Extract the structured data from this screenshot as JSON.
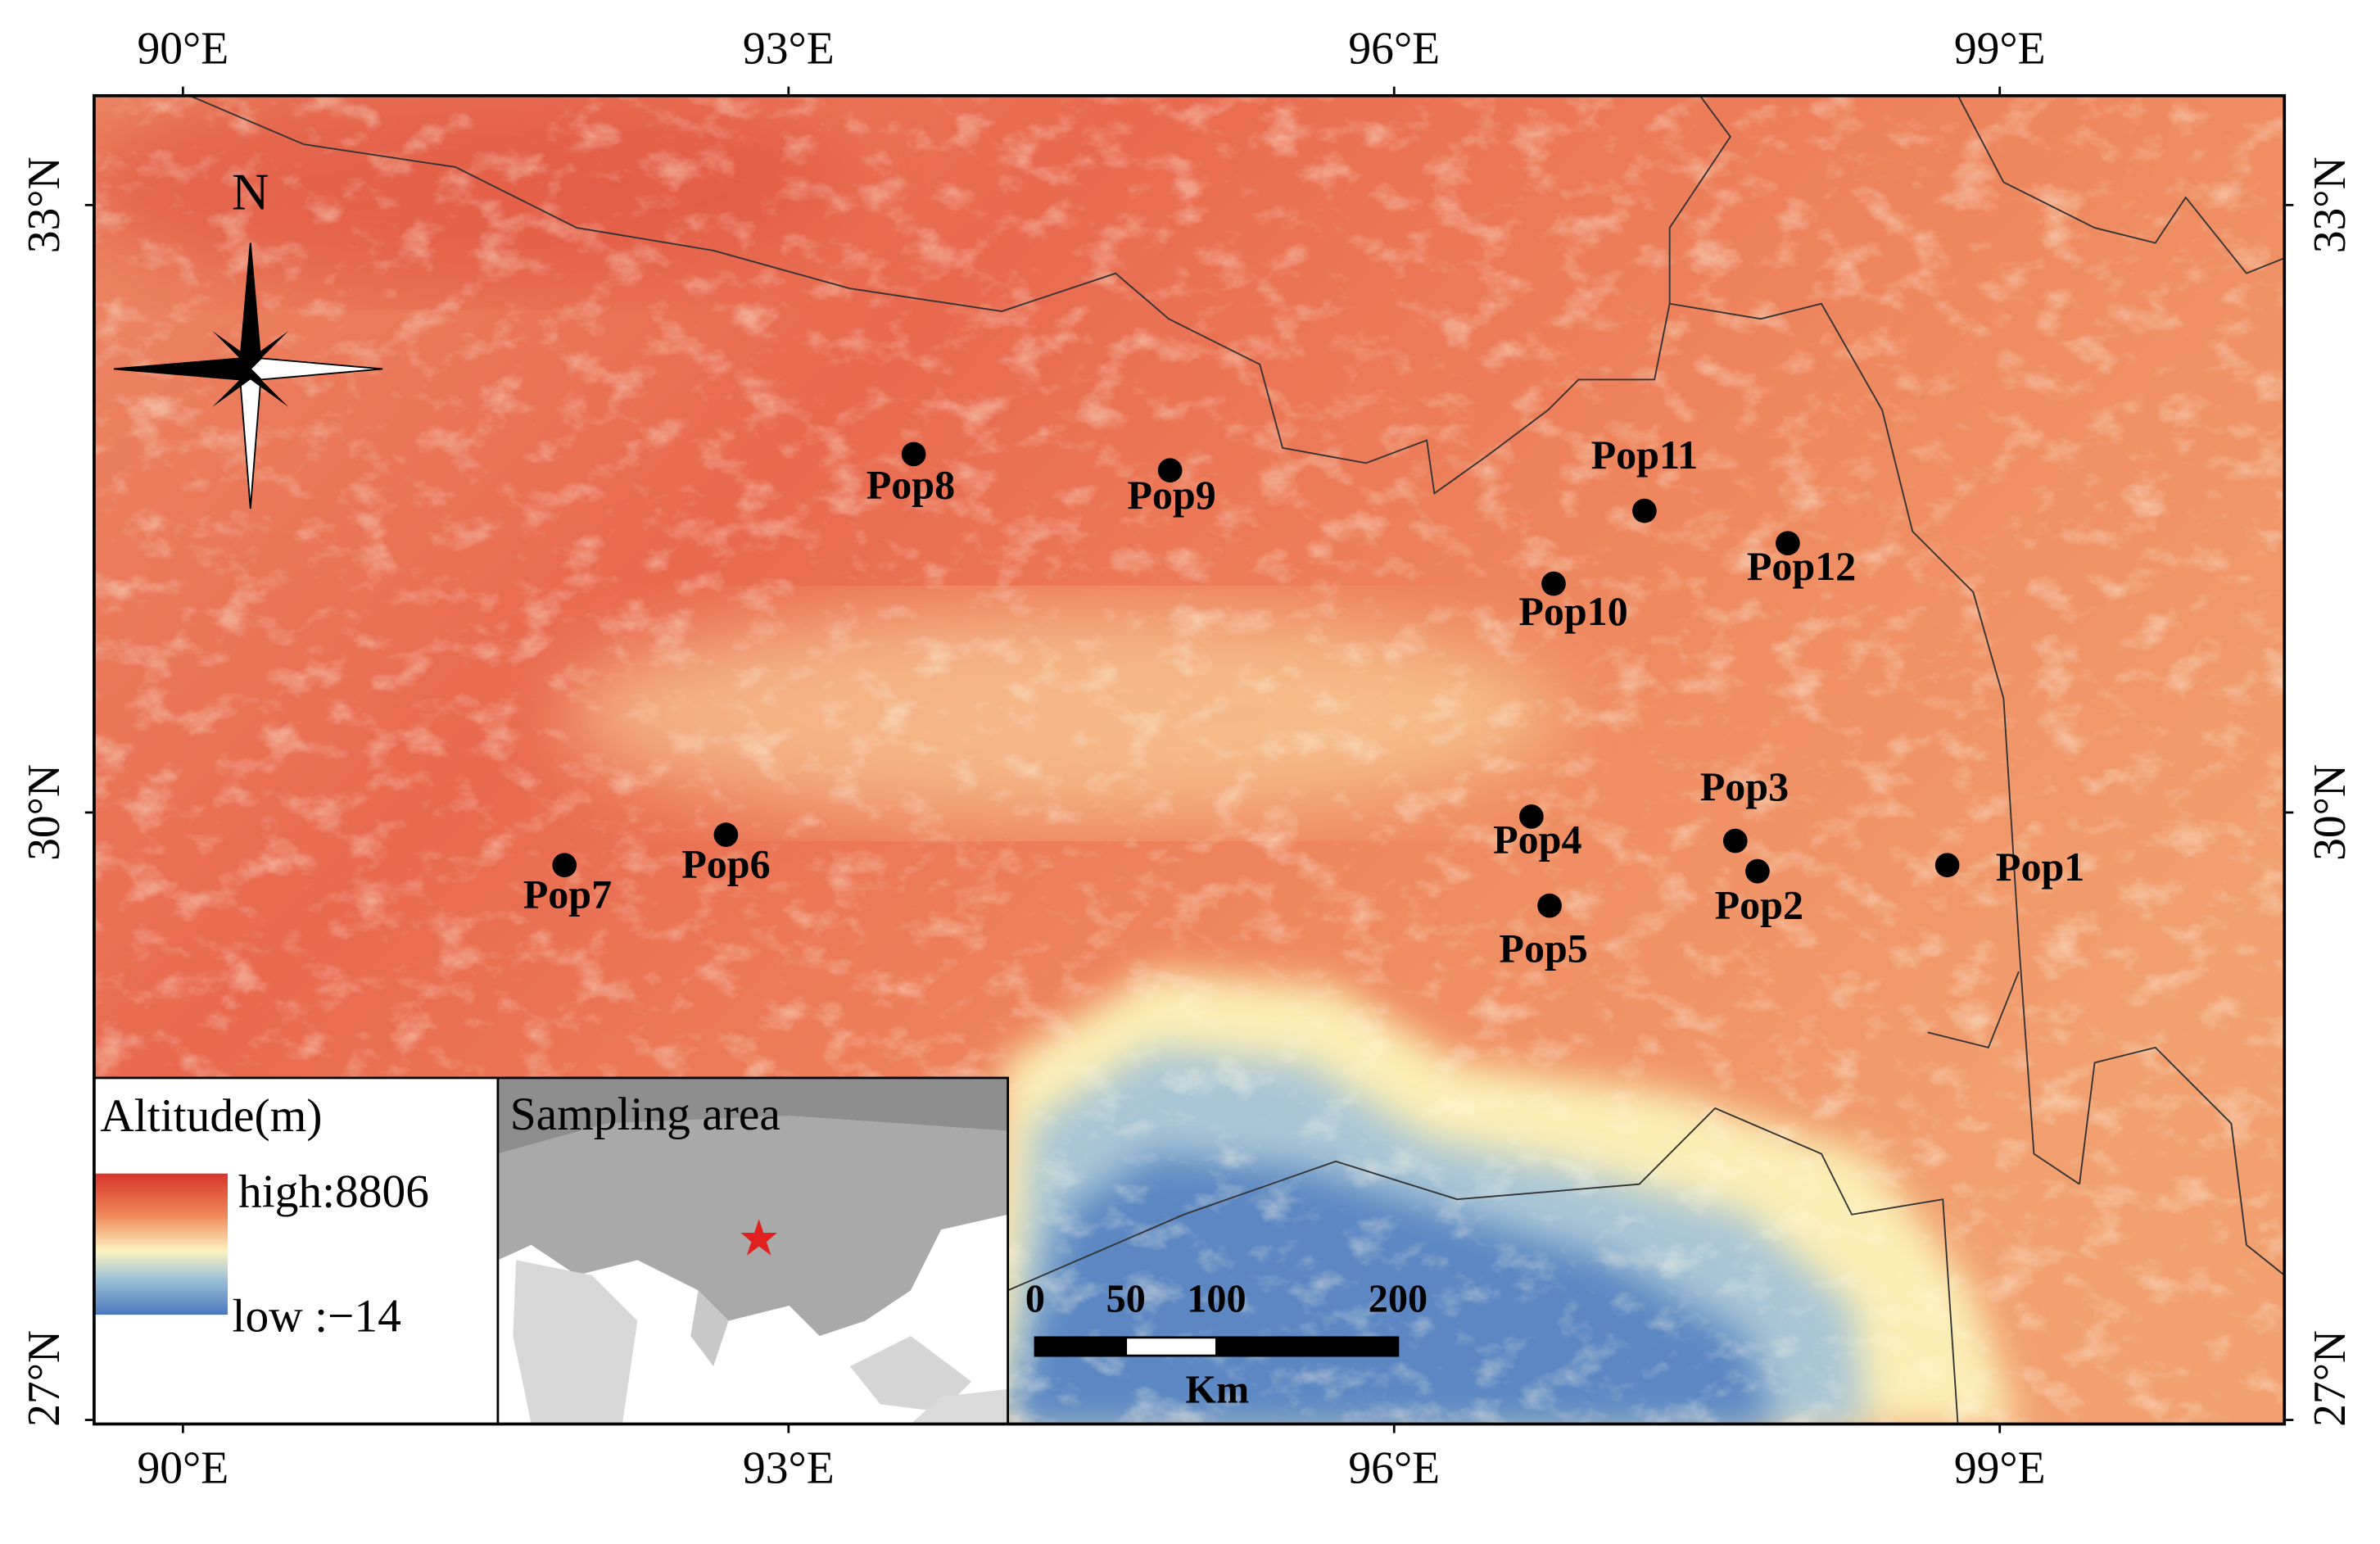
{
  "map": {
    "xlim": [
      89.56,
      100.41
    ],
    "ylim": [
      26.98,
      33.54
    ],
    "xticks": [
      {
        "value": 90,
        "label": "90°E"
      },
      {
        "value": 93,
        "label": "93°E"
      },
      {
        "value": 96,
        "label": "96°E"
      },
      {
        "value": 99,
        "label": "99°E"
      }
    ],
    "yticks": [
      {
        "value": 27,
        "label": "27°N"
      },
      {
        "value": 30,
        "label": "30°N"
      },
      {
        "value": 33,
        "label": "33°N"
      }
    ]
  },
  "compass": {
    "label": "N"
  },
  "populations": [
    {
      "name": "Pop1",
      "lon": 98.74,
      "lat": 29.74
    },
    {
      "name": "Pop2",
      "lon": 97.8,
      "lat": 29.71
    },
    {
      "name": "Pop3",
      "lon": 97.69,
      "lat": 29.86
    },
    {
      "name": "Pop4",
      "lon": 96.68,
      "lat": 29.98
    },
    {
      "name": "Pop5",
      "lon": 96.77,
      "lat": 29.54
    },
    {
      "name": "Pop6",
      "lon": 92.69,
      "lat": 29.89
    },
    {
      "name": "Pop7",
      "lon": 91.89,
      "lat": 29.74
    },
    {
      "name": "Pop8",
      "lon": 93.62,
      "lat": 31.77
    },
    {
      "name": "Pop9",
      "lon": 94.89,
      "lat": 31.69
    },
    {
      "name": "Pop10",
      "lon": 96.79,
      "lat": 31.13
    },
    {
      "name": "Pop11",
      "lon": 97.24,
      "lat": 31.49
    },
    {
      "name": "Pop12",
      "lon": 97.95,
      "lat": 31.33
    }
  ],
  "legend": {
    "title": "Altitude(m)",
    "high": "high:8806",
    "low": "low :−14"
  },
  "inset": {
    "title": "Sampling area"
  },
  "scale_bar": {
    "ticks": [
      0,
      50,
      100,
      200
    ],
    "unit": "Km"
  }
}
